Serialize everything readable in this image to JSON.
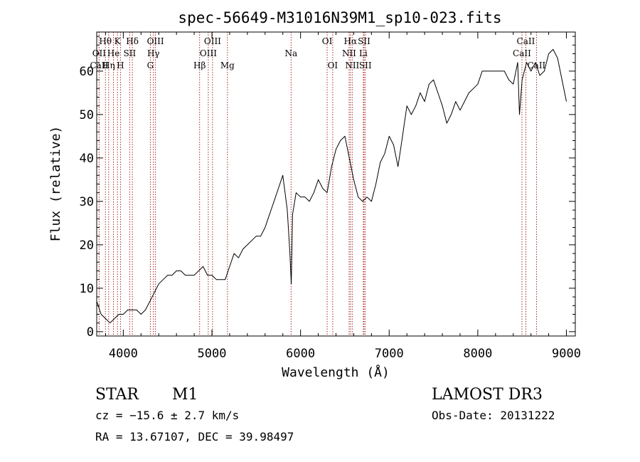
{
  "chart_data": {
    "type": "line",
    "title": "spec-56649-M31016N39M1_sp10-023.fits",
    "xlabel": "Wavelength (Å)",
    "ylabel": "Flux (relative)",
    "xlim": [
      3700,
      9100
    ],
    "ylim": [
      -1,
      69
    ],
    "x_ticks": [
      4000,
      5000,
      6000,
      7000,
      8000,
      9000
    ],
    "y_ticks": [
      0,
      10,
      20,
      30,
      40,
      50,
      60
    ],
    "grid": false,
    "series": [
      {
        "x": [
          3700,
          3750,
          3800,
          3850,
          3900,
          3950,
          4000,
          4050,
          4100,
          4150,
          4200,
          4250,
          4300,
          4350,
          4400,
          4450,
          4500,
          4550,
          4600,
          4650,
          4700,
          4750,
          4800,
          4850,
          4900,
          4950,
          5000,
          5050,
          5100,
          5150,
          5200,
          5250,
          5300,
          5350,
          5400,
          5450,
          5500,
          5550,
          5600,
          5650,
          5700,
          5750,
          5800,
          5850,
          5880,
          5895,
          5910,
          5950,
          6000,
          6050,
          6100,
          6150,
          6200,
          6250,
          6300,
          6350,
          6400,
          6450,
          6500,
          6550,
          6600,
          6650,
          6700,
          6750,
          6800,
          6850,
          6900,
          6950,
          7000,
          7050,
          7100,
          7150,
          7200,
          7250,
          7300,
          7350,
          7400,
          7450,
          7500,
          7550,
          7600,
          7650,
          7700,
          7750,
          7800,
          7850,
          7900,
          7950,
          8000,
          8050,
          8100,
          8150,
          8200,
          8250,
          8300,
          8350,
          8400,
          8450,
          8470,
          8500,
          8550,
          8600,
          8650,
          8700,
          8750,
          8800,
          8850,
          8900,
          8950,
          9000
        ],
        "y": [
          7,
          4,
          3,
          2,
          3,
          4,
          4,
          5,
          5,
          5,
          4,
          5,
          7,
          9,
          11,
          12,
          13,
          13,
          14,
          14,
          13,
          13,
          13,
          14,
          15,
          13,
          13,
          12,
          12,
          12,
          15,
          18,
          17,
          19,
          20,
          21,
          22,
          22,
          24,
          27,
          30,
          33,
          36,
          28,
          18,
          11,
          27,
          32,
          31,
          31,
          30,
          32,
          35,
          33,
          32,
          38,
          42,
          44,
          45,
          40,
          35,
          31,
          30,
          31,
          30,
          34,
          39,
          41,
          45,
          43,
          38,
          45,
          52,
          50,
          52,
          55,
          53,
          57,
          58,
          55,
          52,
          48,
          50,
          53,
          51,
          53,
          55,
          56,
          57,
          60,
          60,
          60,
          60,
          60,
          60,
          58,
          57,
          62,
          50,
          58,
          62,
          60,
          62,
          59,
          60,
          64,
          65,
          63,
          58,
          53
        ]
      }
    ],
    "line_marks": [
      {
        "label": "Hθ",
        "x": 3798,
        "row": 0
      },
      {
        "label": "K",
        "x": 3934,
        "row": 0
      },
      {
        "label": "Hδ",
        "x": 4102,
        "row": 0
      },
      {
        "label": "OIII",
        "x": 4363,
        "row": 0
      },
      {
        "label": "OIII",
        "x": 5007,
        "row": 0
      },
      {
        "label": "OI",
        "x": 6300,
        "row": 0
      },
      {
        "label": "Hα",
        "x": 6563,
        "row": 0
      },
      {
        "label": "SII",
        "x": 6717,
        "row": 0
      },
      {
        "label": "CaII",
        "x": 8542,
        "row": 0
      },
      {
        "label": "OII",
        "x": 3727,
        "row": 1
      },
      {
        "label": "He",
        "x": 3889,
        "row": 1
      },
      {
        "label": "SII",
        "x": 4072,
        "row": 1
      },
      {
        "label": "Hγ",
        "x": 4340,
        "row": 1
      },
      {
        "label": "OIII",
        "x": 4959,
        "row": 1
      },
      {
        "label": "Na",
        "x": 5893,
        "row": 1
      },
      {
        "label": "NII",
        "x": 6548,
        "row": 1
      },
      {
        "label": "Li",
        "x": 6708,
        "row": 1
      },
      {
        "label": "CaII",
        "x": 8498,
        "row": 1
      },
      {
        "label": "CaII",
        "x": 3727,
        "row": 2
      },
      {
        "label": "Hη",
        "x": 3835,
        "row": 2
      },
      {
        "label": "H",
        "x": 3968,
        "row": 2
      },
      {
        "label": "G",
        "x": 4305,
        "row": 2
      },
      {
        "label": "Hβ",
        "x": 4861,
        "row": 2
      },
      {
        "label": "Mg",
        "x": 5175,
        "row": 2
      },
      {
        "label": "OI",
        "x": 6363,
        "row": 2
      },
      {
        "label": "NII",
        "x": 6583,
        "row": 2
      },
      {
        "label": "SII",
        "x": 6731,
        "row": 2
      },
      {
        "label": "CaII",
        "x": 8662,
        "row": 2
      }
    ]
  },
  "info": {
    "object_class": "STAR",
    "subclass": "M1",
    "redshift": "cz = −15.6 ± 2.7 km/s",
    "coords": "RA =  13.67107, DEC =  39.98497",
    "survey": "LAMOST DR3",
    "obs_date": "Obs-Date: 20131222"
  }
}
